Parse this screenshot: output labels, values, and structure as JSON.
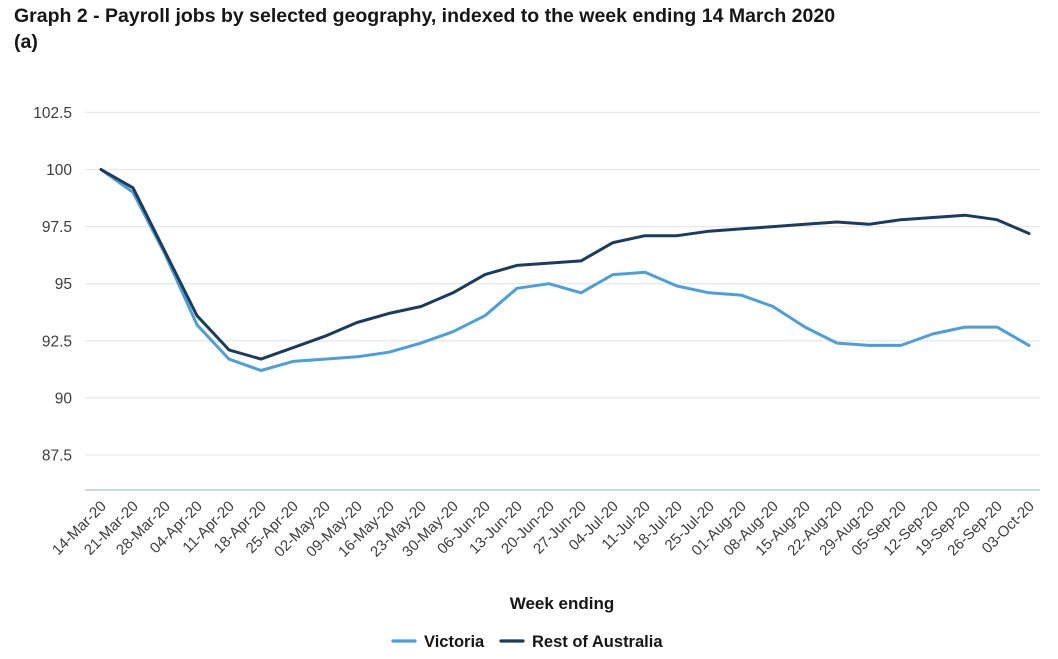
{
  "title": {
    "text": "Graph 2 - Payroll jobs by selected geography, indexed to the week ending 14 March 2020",
    "footnote_marker": "(a)"
  },
  "chart_data": {
    "type": "line",
    "title": "Graph 2 - Payroll jobs by selected geography, indexed to the week ending 14 March 2020 (a)",
    "xlabel": "Week ending",
    "ylabel": "",
    "grid": true,
    "legend_position": "bottom",
    "ylim": [
      86,
      103.5
    ],
    "yticks": [
      102.5,
      100,
      97.5,
      95,
      92.5,
      90,
      87.5
    ],
    "x": [
      "14-Mar-20",
      "21-Mar-20",
      "28-Mar-20",
      "04-Apr-20",
      "11-Apr-20",
      "18-Apr-20",
      "25-Apr-20",
      "02-May-20",
      "09-May-20",
      "16-May-20",
      "23-May-20",
      "30-May-20",
      "06-Jun-20",
      "13-Jun-20",
      "20-Jun-20",
      "27-Jun-20",
      "04-Jul-20",
      "11-Jul-20",
      "18-Jul-20",
      "25-Jul-20",
      "01-Aug-20",
      "08-Aug-20",
      "15-Aug-20",
      "22-Aug-20",
      "29-Aug-20",
      "05-Sep-20",
      "12-Sep-20",
      "19-Sep-20",
      "26-Sep-20",
      "03-Oct-20"
    ],
    "series": [
      {
        "name": "Victoria",
        "color": "#4b9fdb",
        "values": [
          100,
          99.0,
          96.3,
          93.2,
          91.7,
          91.2,
          91.6,
          91.7,
          91.8,
          92.0,
          92.4,
          92.9,
          93.6,
          94.8,
          95.0,
          94.6,
          95.4,
          95.5,
          94.9,
          94.6,
          94.5,
          94.0,
          93.1,
          92.4,
          92.3,
          92.3,
          92.8,
          93.1,
          93.1,
          92.3
        ]
      },
      {
        "name": "Rest of Australia",
        "color": "#1b3c5f",
        "values": [
          100,
          99.2,
          96.4,
          93.6,
          92.1,
          91.7,
          92.2,
          92.7,
          93.3,
          93.7,
          94.0,
          94.6,
          95.4,
          95.8,
          95.9,
          96.0,
          96.8,
          97.1,
          97.1,
          97.3,
          97.4,
          97.5,
          97.6,
          97.7,
          97.6,
          97.8,
          97.9,
          98.0,
          97.8,
          97.2
        ]
      }
    ]
  },
  "style_colors": {
    "gridline": "#e9e9e9",
    "axis_line": "#bccadb",
    "tick_text": "#3d3d3d",
    "label_text": "#161616"
  }
}
